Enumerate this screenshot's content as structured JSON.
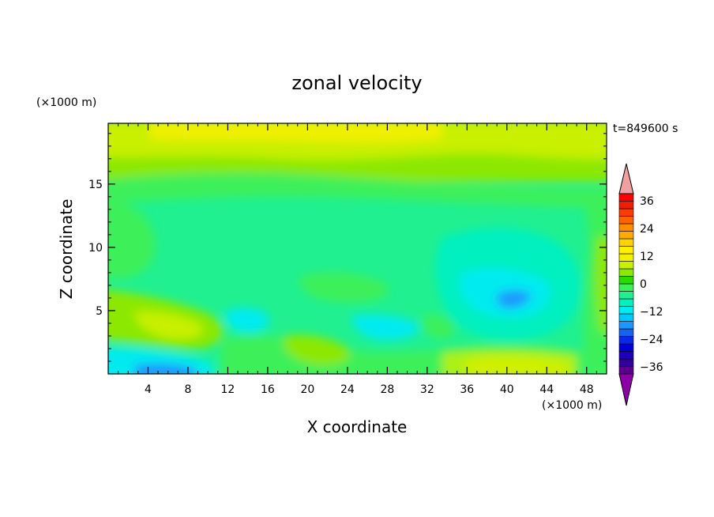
{
  "chart_data": {
    "type": "heatmap",
    "title": "zonal velocity",
    "xlabel": "X coordinate",
    "ylabel": "Z coordinate",
    "x_unit": "(×1000 m)",
    "y_unit": "(×1000 m)",
    "time_label": "t=849600 s",
    "xlim": [
      0,
      50
    ],
    "ylim": [
      0,
      19.8
    ],
    "x_ticks": [
      4,
      8,
      12,
      16,
      20,
      24,
      28,
      32,
      36,
      40,
      44,
      48
    ],
    "y_ticks": [
      5,
      10,
      15
    ],
    "colorbar": {
      "levels": [
        -42,
        -39,
        -36,
        -33,
        -30,
        -27,
        -24,
        -21,
        -18,
        -15,
        -12,
        -9,
        -6,
        -3,
        0,
        3,
        6,
        9,
        12,
        15,
        18,
        21,
        24,
        27,
        30,
        33,
        36,
        39,
        42
      ],
      "colors": [
        "#8c00a8",
        "#5a008c",
        "#32009c",
        "#1e00bc",
        "#0000d8",
        "#0a28e8",
        "#1464f0",
        "#1e96ff",
        "#00c8ff",
        "#00ebf0",
        "#00f0c0",
        "#20f090",
        "#3cf05a",
        "#28dc00",
        "#8ce800",
        "#c8f000",
        "#f0f000",
        "#fff000",
        "#ffd200",
        "#ffaa00",
        "#ff8c00",
        "#ff6400",
        "#ff3c00",
        "#f01e00",
        "#ff0000",
        "#f0a0a0"
      ],
      "tick_labels": [
        "36",
        "24",
        "12",
        "0",
        "−12",
        "−24",
        "−36"
      ]
    },
    "field_description": "Contour-filled zonal velocity; mostly weak values (-12 to 12), minimum about -21 near x=40,z=6"
  }
}
